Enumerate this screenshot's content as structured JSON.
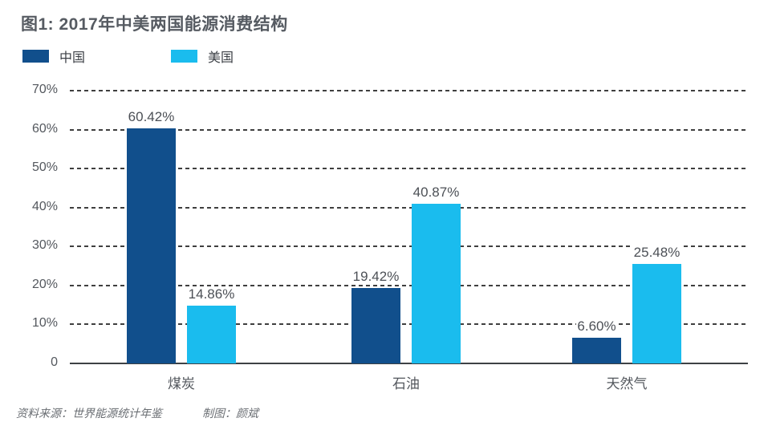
{
  "title": "图1: 2017年中美两国能源消费结构",
  "chart_data": {
    "type": "bar",
    "categories": [
      "煤炭",
      "石油",
      "天然气"
    ],
    "series": [
      {
        "name": "中国",
        "color": "#114F8C",
        "values": [
          60.42,
          19.42,
          6.6
        ],
        "data_labels": [
          "60.42%",
          "19.42%",
          "6.60%"
        ]
      },
      {
        "name": "美国",
        "color": "#1ABCEE",
        "values": [
          14.86,
          40.87,
          25.48
        ],
        "data_labels": [
          "14.86%",
          "40.87%",
          "25.48%"
        ]
      }
    ],
    "title": "图1: 2017年中美两国能源消费结构",
    "xlabel": "",
    "ylabel": "",
    "ylim": [
      0,
      70
    ],
    "y_ticks": [
      {
        "label": "70%",
        "value": 70
      },
      {
        "label": "60%",
        "value": 60
      },
      {
        "label": "50%",
        "value": 50
      },
      {
        "label": "40%",
        "value": 40
      },
      {
        "label": "30%",
        "value": 30
      },
      {
        "label": "20%",
        "value": 20
      },
      {
        "label": "10%",
        "value": 10
      },
      {
        "label": "0",
        "value": 0
      }
    ],
    "grid": "horizontal-dashed",
    "legend_position": "top-left"
  },
  "footer": {
    "source": "资料来源：世界能源统计年鉴",
    "credit": "制图：颜斌"
  }
}
